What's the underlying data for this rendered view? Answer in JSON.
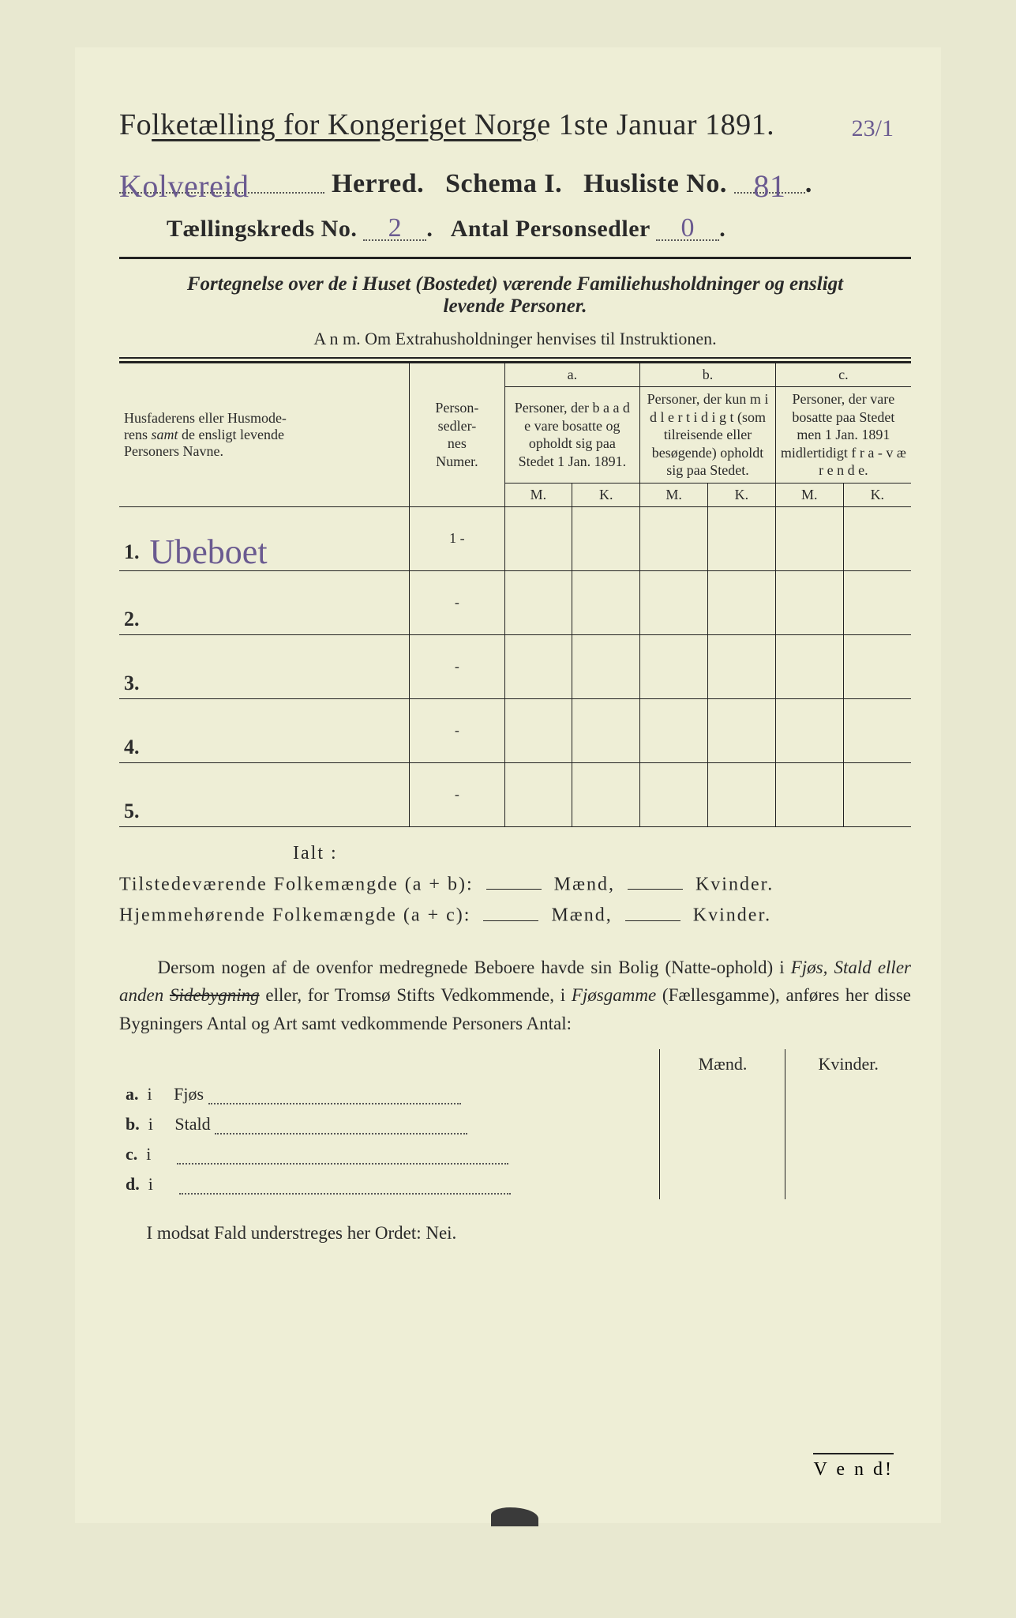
{
  "colors": {
    "paper": "#eeeed6",
    "page_bg": "#e8e8d0",
    "ink": "#2a2a2a",
    "handwriting": "#6a5a90",
    "rule": "#222222"
  },
  "title_main": "Folketælling for Kongeriget Norge 1ste Januar 1891.",
  "margin_note": "23/1",
  "line2": {
    "herred_value": "Kolvereid",
    "herred_label": "Herred.",
    "schema_label": "Schema I.",
    "husliste_label": "Husliste No.",
    "husliste_value": "81"
  },
  "line3": {
    "kreds_label": "Tællingskreds No.",
    "kreds_value": "2",
    "antal_label": "Antal Personsedler",
    "antal_value": "0"
  },
  "fortegnelse_line1": "Fortegnelse over de i Huset (Bostedet) værende Familiehusholdninger og ensligt",
  "fortegnelse_line2": "levende Personer.",
  "anm": "A n m.  Om Extrahusholdninger henvises til Instruktionen.",
  "table": {
    "colA": "Husfaderens eller Husmoderens samt de ensligt levende Personers Navne.",
    "colB": "Person-sedler-nes Numer.",
    "col_a_label": "a.",
    "col_a_text": "Personer, der b a a d e vare bosatte og opholdt sig paa Stedet 1 Jan. 1891.",
    "col_b_label": "b.",
    "col_b_text": "Personer, der kun m i d l e r t i d i g t (som tilreisende eller besøgende) opholdt sig paa Stedet.",
    "col_c_label": "c.",
    "col_c_text": "Personer, der vare bosatte paa Stedet men 1 Jan. 1891 midlertidigt f r a - v æ r e n d e.",
    "M": "M.",
    "K": "K.",
    "rows": [
      {
        "num": "1.",
        "name": "Ubeboet",
        "seq": "1 -"
      },
      {
        "num": "2.",
        "name": "",
        "seq": "-"
      },
      {
        "num": "3.",
        "name": "",
        "seq": "-"
      },
      {
        "num": "4.",
        "name": "",
        "seq": "-"
      },
      {
        "num": "5.",
        "name": "",
        "seq": "-"
      }
    ]
  },
  "ialt": "Ialt :",
  "sum1": {
    "label": "Tilstedeværende Folkemængde (a + b):",
    "maend": "Mænd,",
    "kvinder": "Kvinder."
  },
  "sum2": {
    "label": "Hjemmehørende Folkemængde (a + c):",
    "maend": "Mænd,",
    "kvinder": "Kvinder."
  },
  "para": "Dersom nogen af de ovenfor medregnede Beboere havde sin Bolig (Natte-ophold) i Fjøs, Stald eller anden Sidebygning eller, for Tromsø Stifts Vedkommende, i Fjøsgamme (Fællesgamme), anføres her disse Bygningers Antal og Art samt vedkommende Personers Antal:",
  "side": {
    "head_m": "Mænd.",
    "head_k": "Kvinder.",
    "rows": [
      {
        "l": "a.",
        "i": "i",
        "t": "Fjøs"
      },
      {
        "l": "b.",
        "i": "i",
        "t": "Stald"
      },
      {
        "l": "c.",
        "i": "i",
        "t": ""
      },
      {
        "l": "d.",
        "i": "i",
        "t": ""
      }
    ]
  },
  "modsat": "I modsat Fald understreges her Ordet: Nei.",
  "vend": "V e n d!"
}
